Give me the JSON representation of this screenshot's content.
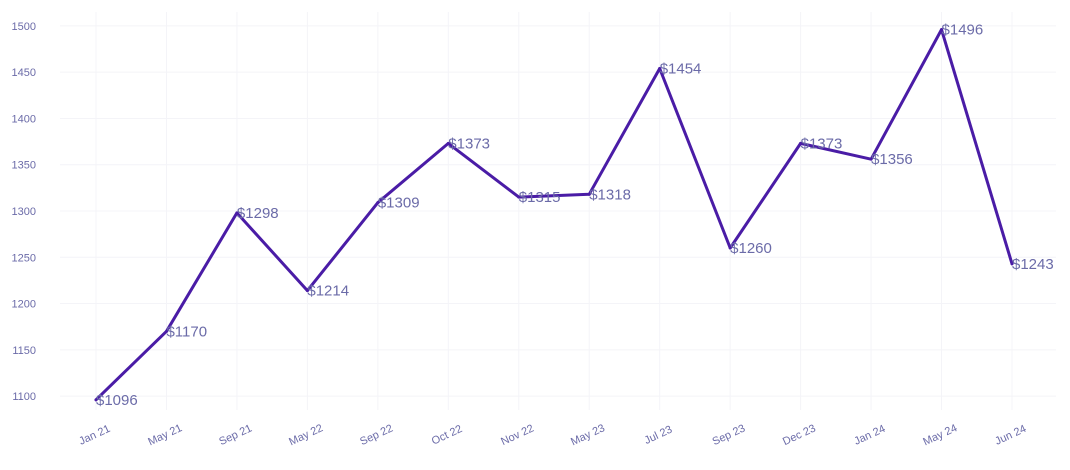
{
  "chart_data": {
    "type": "line",
    "title": "",
    "xlabel": "",
    "ylabel": "",
    "categories": [
      "Jan 21",
      "May 21",
      "Sep 21",
      "May 22",
      "Sep 22",
      "Oct 22",
      "Nov 22",
      "May 23",
      "Jul 23",
      "Sep 23",
      "Dec 23",
      "Jan 24",
      "May 24",
      "Jun 24"
    ],
    "series": [
      {
        "values": [
          1096,
          1170,
          1298,
          1214,
          1309,
          1373,
          1315,
          1318,
          1454,
          1260,
          1373,
          1356,
          1496,
          1243
        ],
        "data_labels": [
          "$1096",
          "$1170",
          "$1298",
          "$1214",
          "$1309",
          "$1373",
          "$1315",
          "$1318",
          "$1454",
          "$1260",
          "$1373",
          "$1356",
          "$1496",
          "$1243"
        ]
      }
    ],
    "yticks": [
      1100,
      1150,
      1200,
      1250,
      1300,
      1350,
      1400,
      1450,
      1500
    ],
    "ylim": [
      1085,
      1515
    ],
    "grid": true,
    "legend": "none",
    "colors": {
      "line": "#4a1ca6",
      "data_label": "#6b6ba8",
      "tick_label": "#6b6ba8",
      "grid": "#f4f4f8"
    }
  }
}
